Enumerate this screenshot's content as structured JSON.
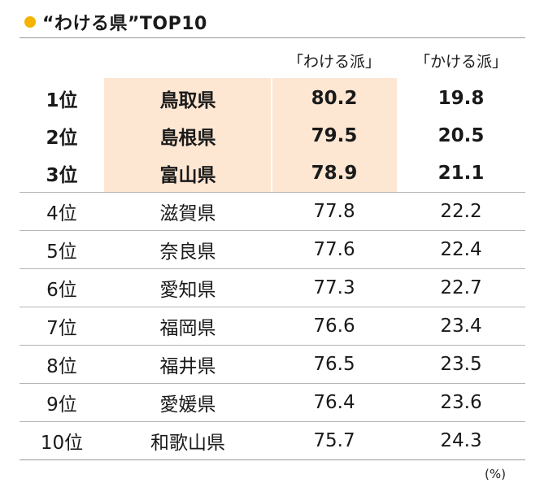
{
  "title": "“わける県”TOP10",
  "chart_data": {
    "type": "table",
    "title": "“わける県”TOP10",
    "columns": [
      "",
      "",
      "「わける派」",
      "「かける派」"
    ],
    "unit": "(%)",
    "rows": [
      {
        "rank": "1位",
        "pref": "鳥取県",
        "wakeru": "80.2",
        "kakeru": "19.8",
        "highlight": true
      },
      {
        "rank": "2位",
        "pref": "島根県",
        "wakeru": "79.5",
        "kakeru": "20.5",
        "highlight": true
      },
      {
        "rank": "3位",
        "pref": "富山県",
        "wakeru": "78.9",
        "kakeru": "21.1",
        "highlight": true
      },
      {
        "rank": "4位",
        "pref": "滋賀県",
        "wakeru": "77.8",
        "kakeru": "22.2",
        "highlight": false
      },
      {
        "rank": "5位",
        "pref": "奈良県",
        "wakeru": "77.6",
        "kakeru": "22.4",
        "highlight": false
      },
      {
        "rank": "6位",
        "pref": "愛知県",
        "wakeru": "77.3",
        "kakeru": "22.7",
        "highlight": false
      },
      {
        "rank": "7位",
        "pref": "福岡県",
        "wakeru": "76.6",
        "kakeru": "23.4",
        "highlight": false
      },
      {
        "rank": "8位",
        "pref": "福井県",
        "wakeru": "76.5",
        "kakeru": "23.5",
        "highlight": false
      },
      {
        "rank": "9位",
        "pref": "愛媛県",
        "wakeru": "76.4",
        "kakeru": "23.6",
        "highlight": false
      },
      {
        "rank": "10位",
        "pref": "和歌山県",
        "wakeru": "75.7",
        "kakeru": "24.3",
        "highlight": false
      }
    ]
  },
  "colors": {
    "dot": "#f5b400",
    "highlight": "#fde6d2"
  }
}
